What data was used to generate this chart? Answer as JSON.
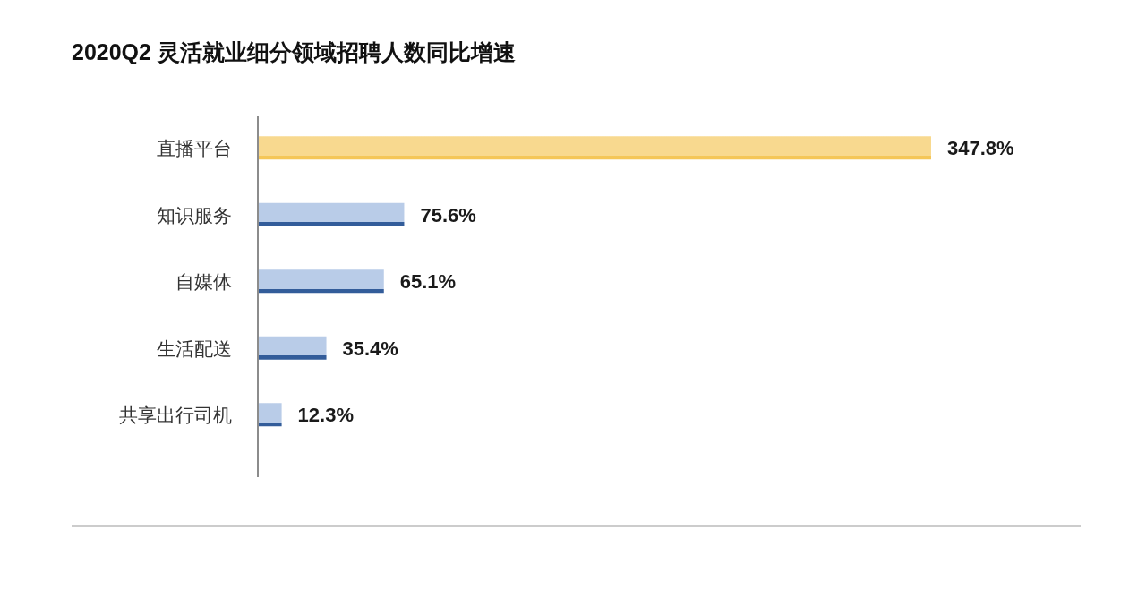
{
  "chart_data": {
    "type": "bar",
    "orientation": "horizontal",
    "title": "2020Q2 灵活就业细分领域招聘人数同比增速",
    "categories": [
      "直播平台",
      "知识服务",
      "自媒体",
      "生活配送",
      "共享出行司机"
    ],
    "values": [
      347.8,
      75.6,
      65.1,
      35.4,
      12.3
    ],
    "colors": [
      "#f8d98f",
      "#b9cce8",
      "#b9cce8",
      "#b9cce8",
      "#b9cce8"
    ],
    "value_labels": [
      "347.8%",
      "75.6%",
      "65.1%",
      "35.4%",
      "12.3%"
    ],
    "tick_labels": "y"
  }
}
